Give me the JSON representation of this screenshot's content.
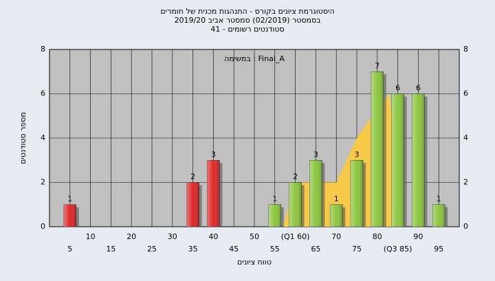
{
  "chart_data": {
    "type": "histogram",
    "title": [
      "היסטוגרמת ציונים בקורס - התנהגות מכנית של חומרים",
      "בסמסטר  (02/2019)  סמסטר אביב 2019/20",
      "סטודנטים רשומים - 41"
    ],
    "annotation": "במשימה : Final_A",
    "xlabel": "טווח ציונים",
    "ylabel": "מספר סטודנטים",
    "x": [
      5,
      35,
      40,
      55,
      60,
      65,
      70,
      75,
      80,
      85,
      90,
      95
    ],
    "values": [
      1,
      2,
      3,
      1,
      2,
      3,
      1,
      3,
      7,
      6,
      6,
      1
    ],
    "colors": [
      "#e02828",
      "#e02828",
      "#e02828",
      "#8cc63f",
      "#8cc63f",
      "#8cc63f",
      "#8cc63f",
      "#8cc63f",
      "#8cc63f",
      "#8cc63f",
      "#8cc63f",
      "#8cc63f"
    ],
    "area": {
      "x": [
        57,
        60,
        65,
        70,
        72,
        75,
        78,
        83,
        86
      ],
      "values": [
        0,
        2,
        2,
        2,
        2.8,
        4,
        4.8,
        6,
        0
      ],
      "color": "#f7c948"
    },
    "xlim": [
      0,
      100
    ],
    "xticks": [
      5,
      10,
      15,
      20,
      25,
      30,
      35,
      40,
      45,
      50,
      55,
      {
        "value": 60,
        "label": "(Q1 60)"
      },
      65,
      70,
      75,
      80,
      {
        "value": 85,
        "label": "(Q3 85)"
      },
      90,
      95
    ],
    "ylim": [
      0,
      8
    ],
    "yticks": [
      0,
      2,
      4,
      6,
      8
    ],
    "grid": true
  }
}
